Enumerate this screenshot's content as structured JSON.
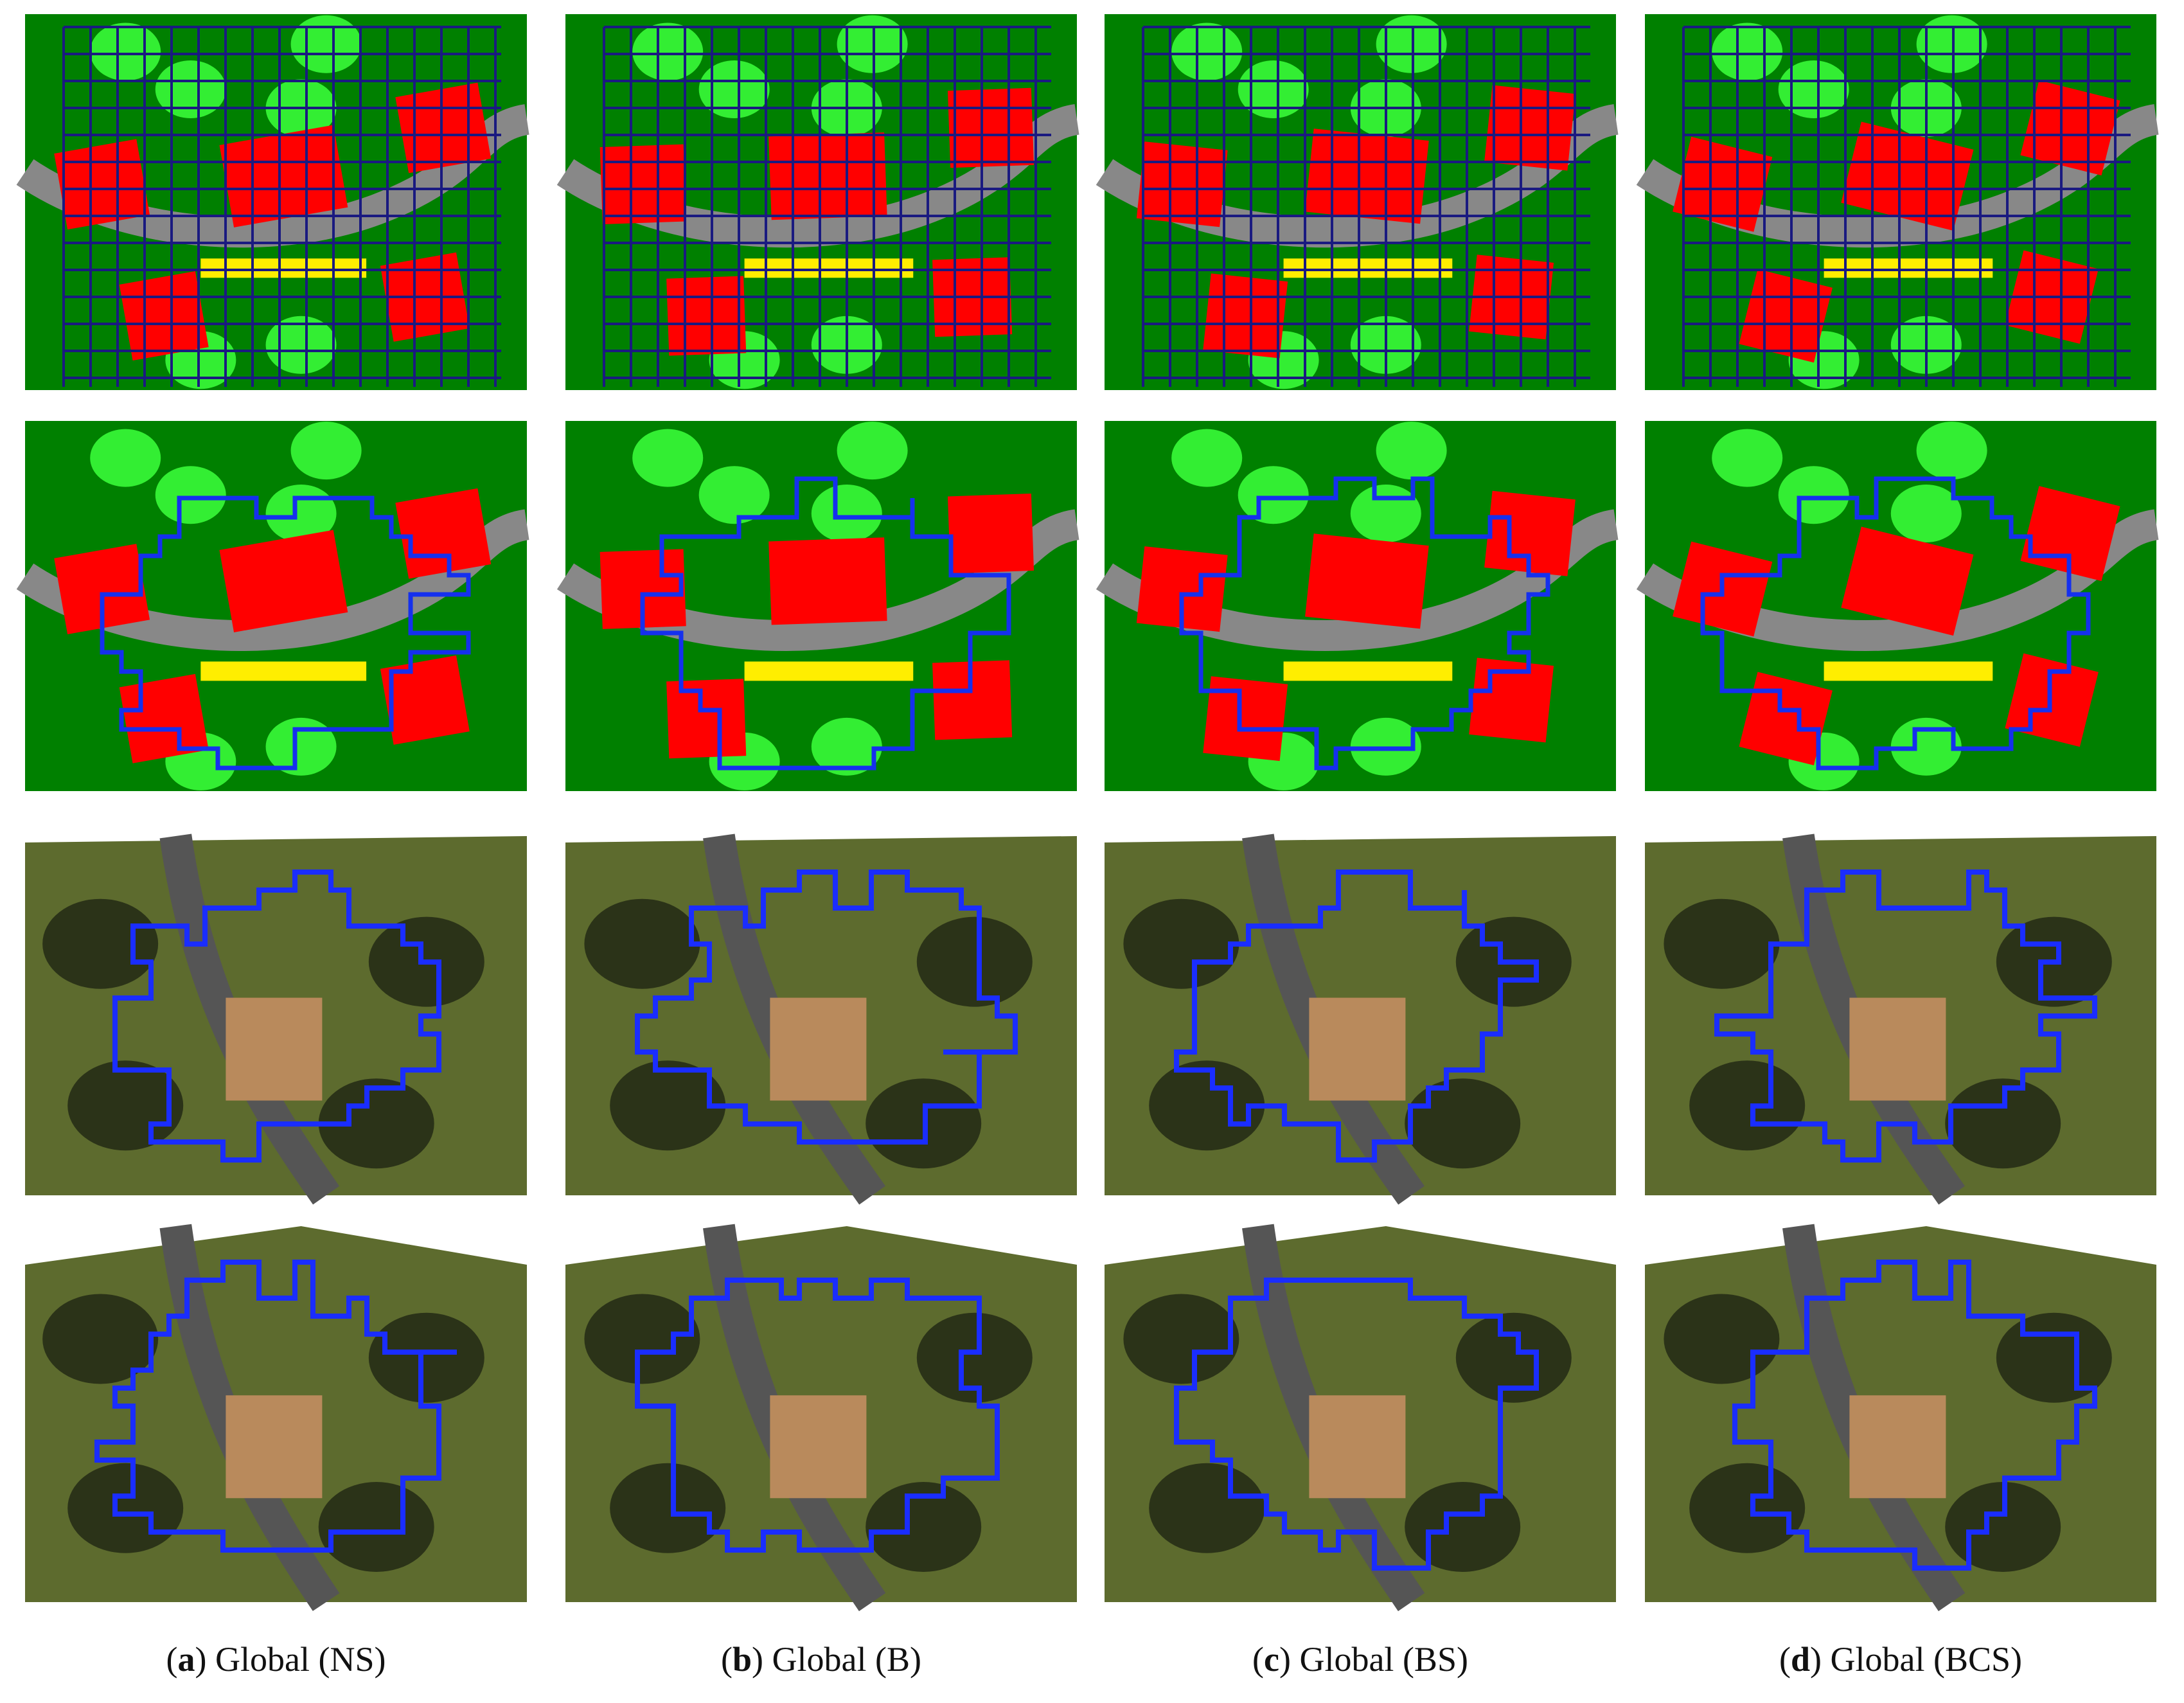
{
  "captions": [
    {
      "prefix": "(",
      "letter": "a",
      "rest": ") Global (NS)"
    },
    {
      "prefix": "(",
      "letter": "b",
      "rest": ") Global (B)"
    },
    {
      "prefix": "(",
      "letter": "c",
      "rest": ") Global (BS)"
    },
    {
      "prefix": "(",
      "letter": "d",
      "rest": ") Global (BCS)"
    }
  ]
}
